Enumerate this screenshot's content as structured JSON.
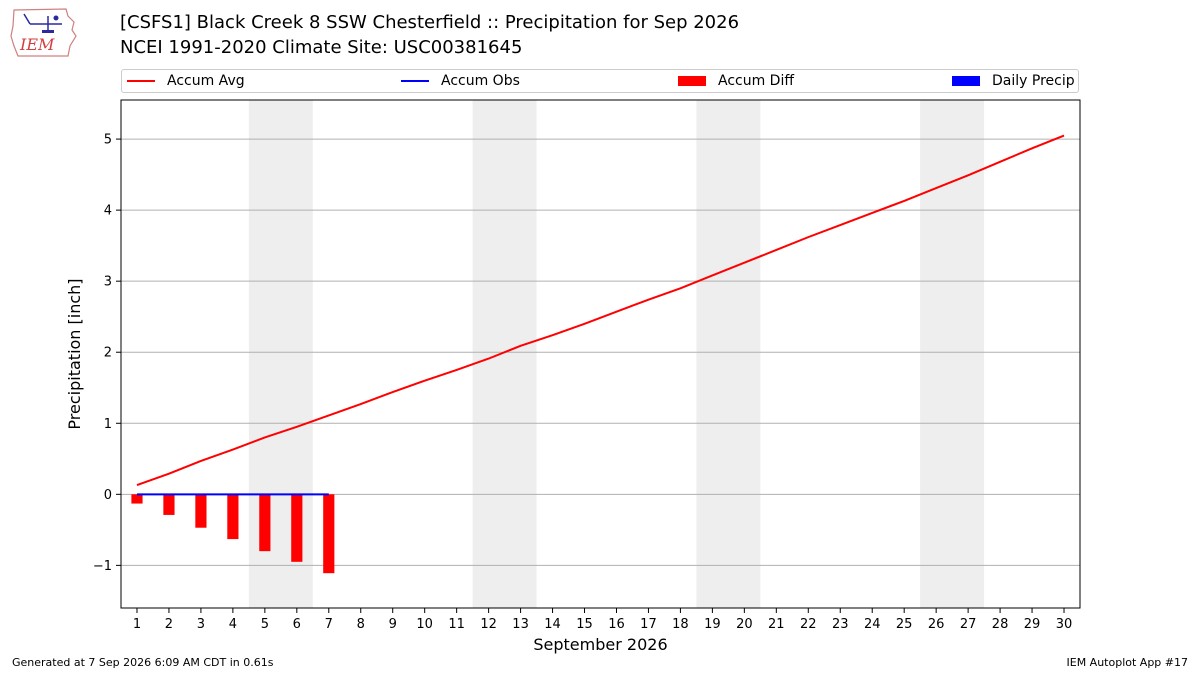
{
  "header": {
    "title_line1": "[CSFS1] Black Creek 8 SSW Chesterfield :: Precipitation for Sep 2026",
    "title_line2": "NCEI 1991-2020 Climate Site: USC00381645",
    "logo_text": "IEM"
  },
  "footer": {
    "left": "Generated at 7 Sep 2026 6:09 AM CDT in 0.61s",
    "right": "IEM Autoplot App #17"
  },
  "legend": {
    "items": [
      {
        "label": "Accum Avg",
        "kind": "line",
        "color": "#ff0000"
      },
      {
        "label": "Accum Obs",
        "kind": "line",
        "color": "#0000ff"
      },
      {
        "label": "Accum Diff",
        "kind": "box",
        "color": "#ff0000"
      },
      {
        "label": "Daily Precip",
        "kind": "box",
        "color": "#0000ff"
      }
    ]
  },
  "chart_data": {
    "type": "line",
    "title": "[CSFS1] Black Creek 8 SSW Chesterfield :: Precipitation for Sep 2026",
    "subtitle": "NCEI 1991-2020 Climate Site: USC00381645",
    "xlabel": "September 2026",
    "ylabel": "Precipitation [inch]",
    "x": [
      1,
      2,
      3,
      4,
      5,
      6,
      7,
      8,
      9,
      10,
      11,
      12,
      13,
      14,
      15,
      16,
      17,
      18,
      19,
      20,
      21,
      22,
      23,
      24,
      25,
      26,
      27,
      28,
      29,
      30
    ],
    "xlim": [
      0.5,
      30.5
    ],
    "ylim": [
      -1.6,
      5.55
    ],
    "yticks": [
      -1,
      0,
      1,
      2,
      3,
      4,
      5
    ],
    "ytick_labels": [
      "−1",
      "0",
      "1",
      "2",
      "3",
      "4",
      "5"
    ],
    "grid": "horizontal",
    "legend_position": "top",
    "weekend_shading": [
      [
        4.5,
        6.5
      ],
      [
        11.5,
        13.5
      ],
      [
        18.5,
        20.5
      ],
      [
        25.5,
        27.5
      ]
    ],
    "series": [
      {
        "name": "Accum Avg",
        "kind": "line",
        "color": "#ff0000",
        "x": [
          1,
          2,
          3,
          4,
          5,
          6,
          7,
          8,
          9,
          10,
          11,
          12,
          13,
          14,
          15,
          16,
          17,
          18,
          19,
          20,
          21,
          22,
          23,
          24,
          25,
          26,
          27,
          28,
          29,
          30
        ],
        "values": [
          0.13,
          0.29,
          0.47,
          0.63,
          0.8,
          0.95,
          1.11,
          1.27,
          1.44,
          1.6,
          1.75,
          1.91,
          2.09,
          2.24,
          2.4,
          2.57,
          2.74,
          2.9,
          3.08,
          3.26,
          3.44,
          3.62,
          3.79,
          3.96,
          4.13,
          4.31,
          4.49,
          4.68,
          4.87,
          5.05
        ]
      },
      {
        "name": "Accum Obs",
        "kind": "line",
        "color": "#0000ff",
        "x": [
          1,
          2,
          3,
          4,
          5,
          6,
          7
        ],
        "values": [
          0,
          0,
          0,
          0,
          0,
          0,
          0
        ]
      },
      {
        "name": "Accum Diff",
        "kind": "bar",
        "color": "#ff0000",
        "x": [
          1,
          2,
          3,
          4,
          5,
          6,
          7
        ],
        "values": [
          -0.13,
          -0.29,
          -0.47,
          -0.63,
          -0.8,
          -0.95,
          -1.11
        ]
      },
      {
        "name": "Daily Precip",
        "kind": "bar",
        "color": "#0000ff",
        "x": [
          1,
          2,
          3,
          4,
          5,
          6,
          7
        ],
        "values": [
          0,
          0,
          0,
          0,
          0,
          0,
          0
        ]
      }
    ]
  }
}
